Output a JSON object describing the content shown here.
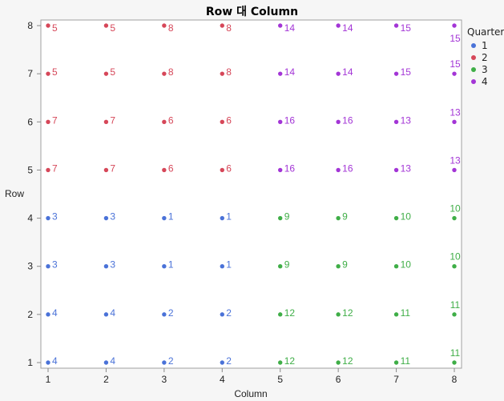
{
  "chart_data": {
    "type": "scatter",
    "title": "Row 대 Column",
    "xlabel": "Column",
    "ylabel": "Row",
    "xlim": [
      1,
      8
    ],
    "ylim": [
      1,
      8
    ],
    "x_ticks": [
      1,
      2,
      3,
      4,
      5,
      6,
      7,
      8
    ],
    "y_ticks": [
      1,
      2,
      3,
      4,
      5,
      6,
      7,
      8
    ],
    "grid": false,
    "legend": {
      "title": "Quarter",
      "position": "right",
      "entries": [
        {
          "label": "1",
          "color": "#4a72d8"
        },
        {
          "label": "2",
          "color": "#d64759"
        },
        {
          "label": "3",
          "color": "#3fae47"
        },
        {
          "label": "4",
          "color": "#a335d6"
        }
      ]
    },
    "grid_labels": {
      "rows_top_to_bottom": [
        8,
        7,
        6,
        5,
        4,
        3,
        2,
        1
      ],
      "values": [
        [
          5,
          5,
          8,
          8,
          14,
          14,
          15,
          15
        ],
        [
          5,
          5,
          8,
          8,
          14,
          14,
          15,
          15
        ],
        [
          7,
          7,
          6,
          6,
          16,
          16,
          13,
          13
        ],
        [
          7,
          7,
          6,
          6,
          16,
          16,
          13,
          13
        ],
        [
          3,
          3,
          1,
          1,
          9,
          9,
          10,
          10
        ],
        [
          3,
          3,
          1,
          1,
          9,
          9,
          10,
          10
        ],
        [
          4,
          4,
          2,
          2,
          12,
          12,
          11,
          11
        ],
        [
          4,
          4,
          2,
          2,
          12,
          12,
          11,
          11
        ]
      ],
      "quarter": [
        [
          2,
          2,
          2,
          2,
          4,
          4,
          4,
          4
        ],
        [
          2,
          2,
          2,
          2,
          4,
          4,
          4,
          4
        ],
        [
          2,
          2,
          2,
          2,
          4,
          4,
          4,
          4
        ],
        [
          2,
          2,
          2,
          2,
          4,
          4,
          4,
          4
        ],
        [
          1,
          1,
          1,
          1,
          3,
          3,
          3,
          3
        ],
        [
          1,
          1,
          1,
          1,
          3,
          3,
          3,
          3
        ],
        [
          1,
          1,
          1,
          1,
          3,
          3,
          3,
          3
        ],
        [
          1,
          1,
          1,
          1,
          3,
          3,
          3,
          3
        ]
      ]
    }
  }
}
